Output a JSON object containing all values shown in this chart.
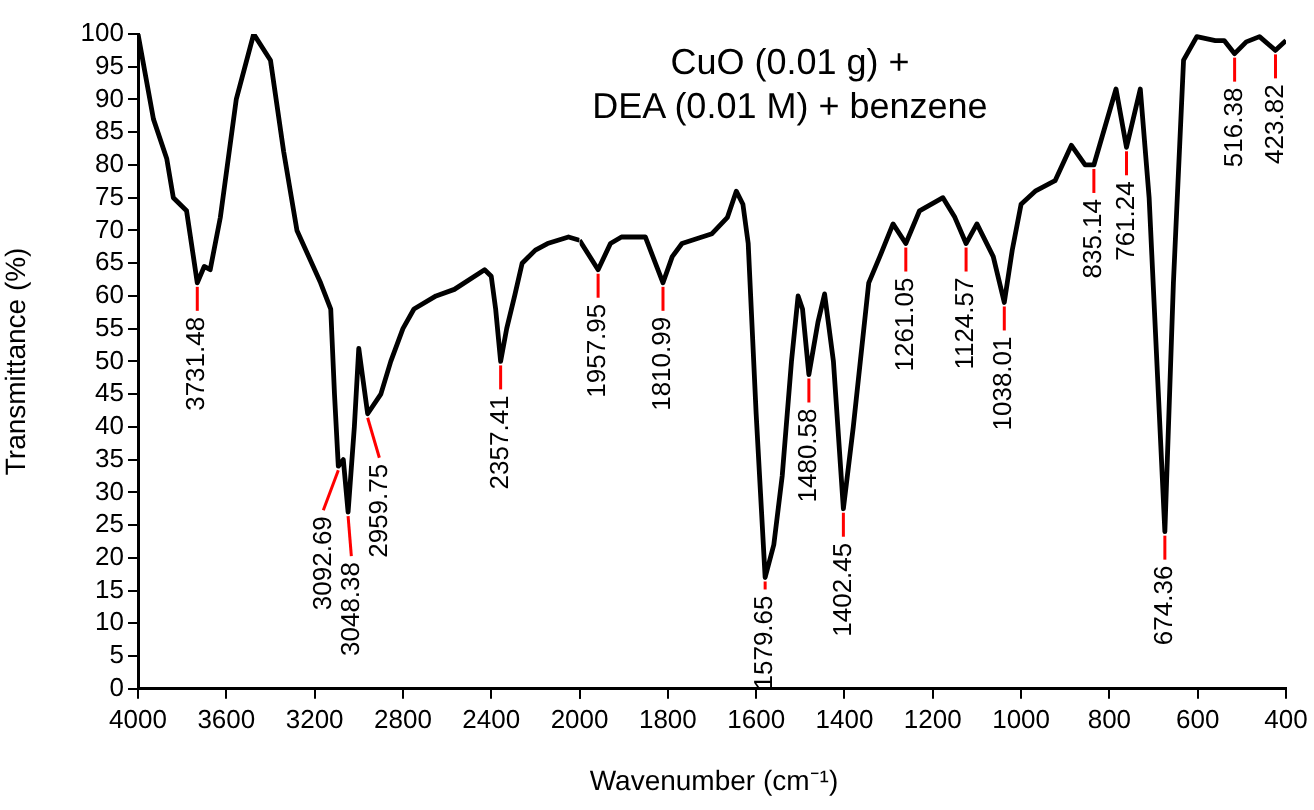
{
  "chart_data": [
    {
      "type": "line",
      "ylabel": "Transmittance (%)",
      "xlim": [
        4000,
        2000
      ],
      "xticks": [
        4000,
        3600,
        3200,
        2800,
        2400,
        {
          "value": 2000,
          "label": null
        }
      ],
      "ylim": [
        0,
        100
      ],
      "yticks": [
        0,
        5,
        10,
        15,
        20,
        25,
        30,
        35,
        40,
        45,
        50,
        55,
        60,
        65,
        70,
        75,
        80,
        85,
        90,
        95,
        100
      ],
      "grid": false,
      "legend": false,
      "marker": "none",
      "line_style": "solid",
      "series": [
        {
          "color": "#000000",
          "x": [
            4000,
            3930,
            3870,
            3840,
            3780,
            3731.48,
            3700,
            3673,
            3627,
            3555,
            3476,
            3400,
            3340,
            3280,
            3173,
            3127,
            3110,
            3092.69,
            3070,
            3048.38,
            3020,
            3000,
            2980,
            2959.75,
            2900,
            2855,
            2800,
            2750,
            2650,
            2567,
            2430,
            2400,
            2380,
            2357.41,
            2330,
            2294,
            2260,
            2200,
            2145,
            2050,
            2000
          ],
          "values": [
            100,
            87,
            81,
            75,
            73,
            62,
            64.5,
            64,
            72,
            90,
            100,
            96,
            82,
            70,
            62,
            58,
            45,
            34,
            35,
            27,
            40,
            52,
            47,
            42,
            45,
            50,
            55,
            58,
            60,
            61,
            64,
            63,
            58,
            50,
            55,
            60,
            65,
            67,
            68,
            69,
            68.5
          ]
        }
      ],
      "annotations": [
        {
          "text": "3731.48",
          "x": 3731.48,
          "y": 62
        },
        {
          "text": "3092.69",
          "x": 3092.69,
          "y": 34
        },
        {
          "text": "3048.38",
          "x": 3048.38,
          "y": 27
        },
        {
          "text": "2959.75",
          "x": 2959.75,
          "y": 42
        },
        {
          "text": "2357.41",
          "x": 2357.41,
          "y": 50
        }
      ]
    },
    {
      "type": "line",
      "title": "CuO (0.01 g) +\nDEA (0.01 M) + benzene",
      "xlabel": "Wavenumber (cm⁻¹)",
      "xlim": [
        2000,
        400
      ],
      "xticks": [
        2000,
        1800,
        1600,
        1400,
        1200,
        1000,
        800,
        600,
        400
      ],
      "ylim": [
        0,
        100
      ],
      "tick_labels": "x",
      "grid": false,
      "legend": false,
      "marker": "none",
      "line_style": "solid",
      "series": [
        {
          "color": "#000000",
          "x": [
            2000,
            1957.95,
            1930,
            1905,
            1851,
            1810.99,
            1790,
            1768,
            1700,
            1665,
            1645,
            1630,
            1618,
            1600,
            1579.65,
            1560,
            1541,
            1520,
            1505,
            1495,
            1480.58,
            1460,
            1445,
            1425,
            1402.45,
            1380,
            1345,
            1320,
            1290,
            1261.05,
            1230,
            1177,
            1150,
            1124.57,
            1100,
            1063,
            1038.01,
            1020,
            1000,
            968,
            923,
            886,
            855,
            835.14,
            785,
            761.24,
            730,
            710,
            674.36,
            655,
            632,
            602,
            560,
            540,
            516.38,
            490,
            460,
            423.82,
            400
          ],
          "values": [
            68.5,
            64,
            68,
            69,
            69,
            62,
            66,
            68,
            69.5,
            72,
            76,
            74,
            68,
            42,
            17,
            22,
            32.5,
            50,
            60,
            58,
            48,
            56,
            60.3,
            50,
            27.5,
            40,
            62,
            66,
            71,
            68,
            73,
            75,
            72,
            68,
            71,
            66,
            59,
            67,
            74,
            76,
            77.6,
            83,
            80,
            80,
            91.6,
            82.7,
            91.6,
            75,
            24,
            62,
            96,
            99.6,
            99,
            99,
            97,
            98.8,
            99.6,
            97.5,
            99
          ]
        }
      ],
      "annotations": [
        {
          "text": "1957.95",
          "x": 1957.95,
          "y": 64
        },
        {
          "text": "1810.99",
          "x": 1810.99,
          "y": 62
        },
        {
          "text": "1579.65",
          "x": 1579.65,
          "y": 17
        },
        {
          "text": "1480.58",
          "x": 1480.58,
          "y": 48
        },
        {
          "text": "1402.45",
          "x": 1402.45,
          "y": 27.5
        },
        {
          "text": "1261.05",
          "x": 1261.05,
          "y": 68
        },
        {
          "text": "1124.57",
          "x": 1124.57,
          "y": 68
        },
        {
          "text": "1038.01",
          "x": 1038.01,
          "y": 59
        },
        {
          "text": "835.14",
          "x": 835.14,
          "y": 80
        },
        {
          "text": "761.24",
          "x": 761.24,
          "y": 82.7
        },
        {
          "text": "674.36",
          "x": 674.36,
          "y": 24
        },
        {
          "text": "516.38",
          "x": 516.38,
          "y": 97
        },
        {
          "text": "423.82",
          "x": 423.82,
          "y": 97.5
        }
      ]
    }
  ]
}
